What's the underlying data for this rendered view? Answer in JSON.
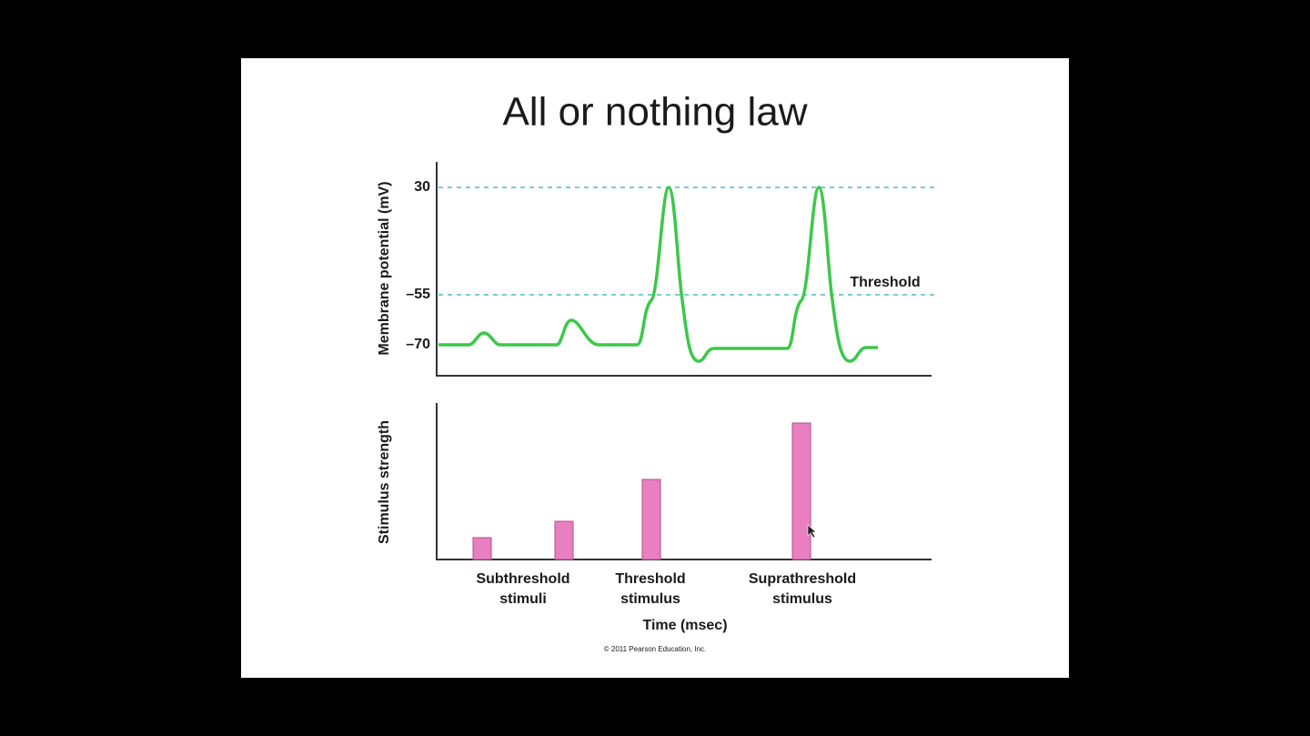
{
  "slide": {
    "title": "All or nothing law"
  },
  "figure": {
    "top_panel": {
      "y_axis_label": "Membrane potential (mV)",
      "ticks": [
        "30",
        "–55",
        "–70"
      ],
      "threshold_label": "Threshold"
    },
    "bottom_panel": {
      "y_axis_label": "Stimulus strength",
      "groups": [
        [
          "Subthreshold",
          "stimuli"
        ],
        [
          "Threshold",
          "stimulus"
        ],
        [
          "Suprathreshold",
          "stimulus"
        ]
      ],
      "x_axis_label": "Time (msec)"
    },
    "credit": "© 2011 Pearson Education, Inc."
  }
}
